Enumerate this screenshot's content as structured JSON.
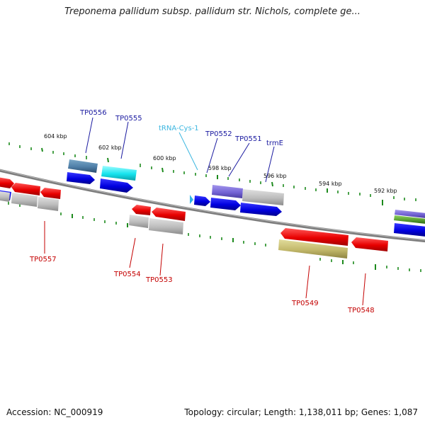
{
  "title": "Treponema pallidum subsp. pallidum str. Nichols, complete ge...",
  "footer": {
    "accession": "Accession: NC_000919",
    "stats": "Topology: circular; Length: 1,138,011 bp; Genes: 1,087"
  },
  "scale_labels": [
    "604 kbp",
    "602 kbp",
    "600 kbp",
    "598 kbp",
    "596 kbp",
    "594 kbp",
    "592 kbp"
  ],
  "forward_labels": [
    "TP0556",
    "TP0555",
    "tRNA-Cys-1",
    "TP0552",
    "TP0551",
    "trmE"
  ],
  "reverse_labels": [
    "TP0557",
    "TP0554",
    "TP0553",
    "TP0549",
    "TP0548"
  ],
  "colors": {
    "forward_cds": "#1010e8",
    "reverse_cds": "#e81010",
    "trna": "#33b5e8",
    "backbone": "#8c8c8c",
    "ticks": "#1d8a1d",
    "label_forward": "#1a1aa0",
    "label_reverse": "#c40000"
  }
}
